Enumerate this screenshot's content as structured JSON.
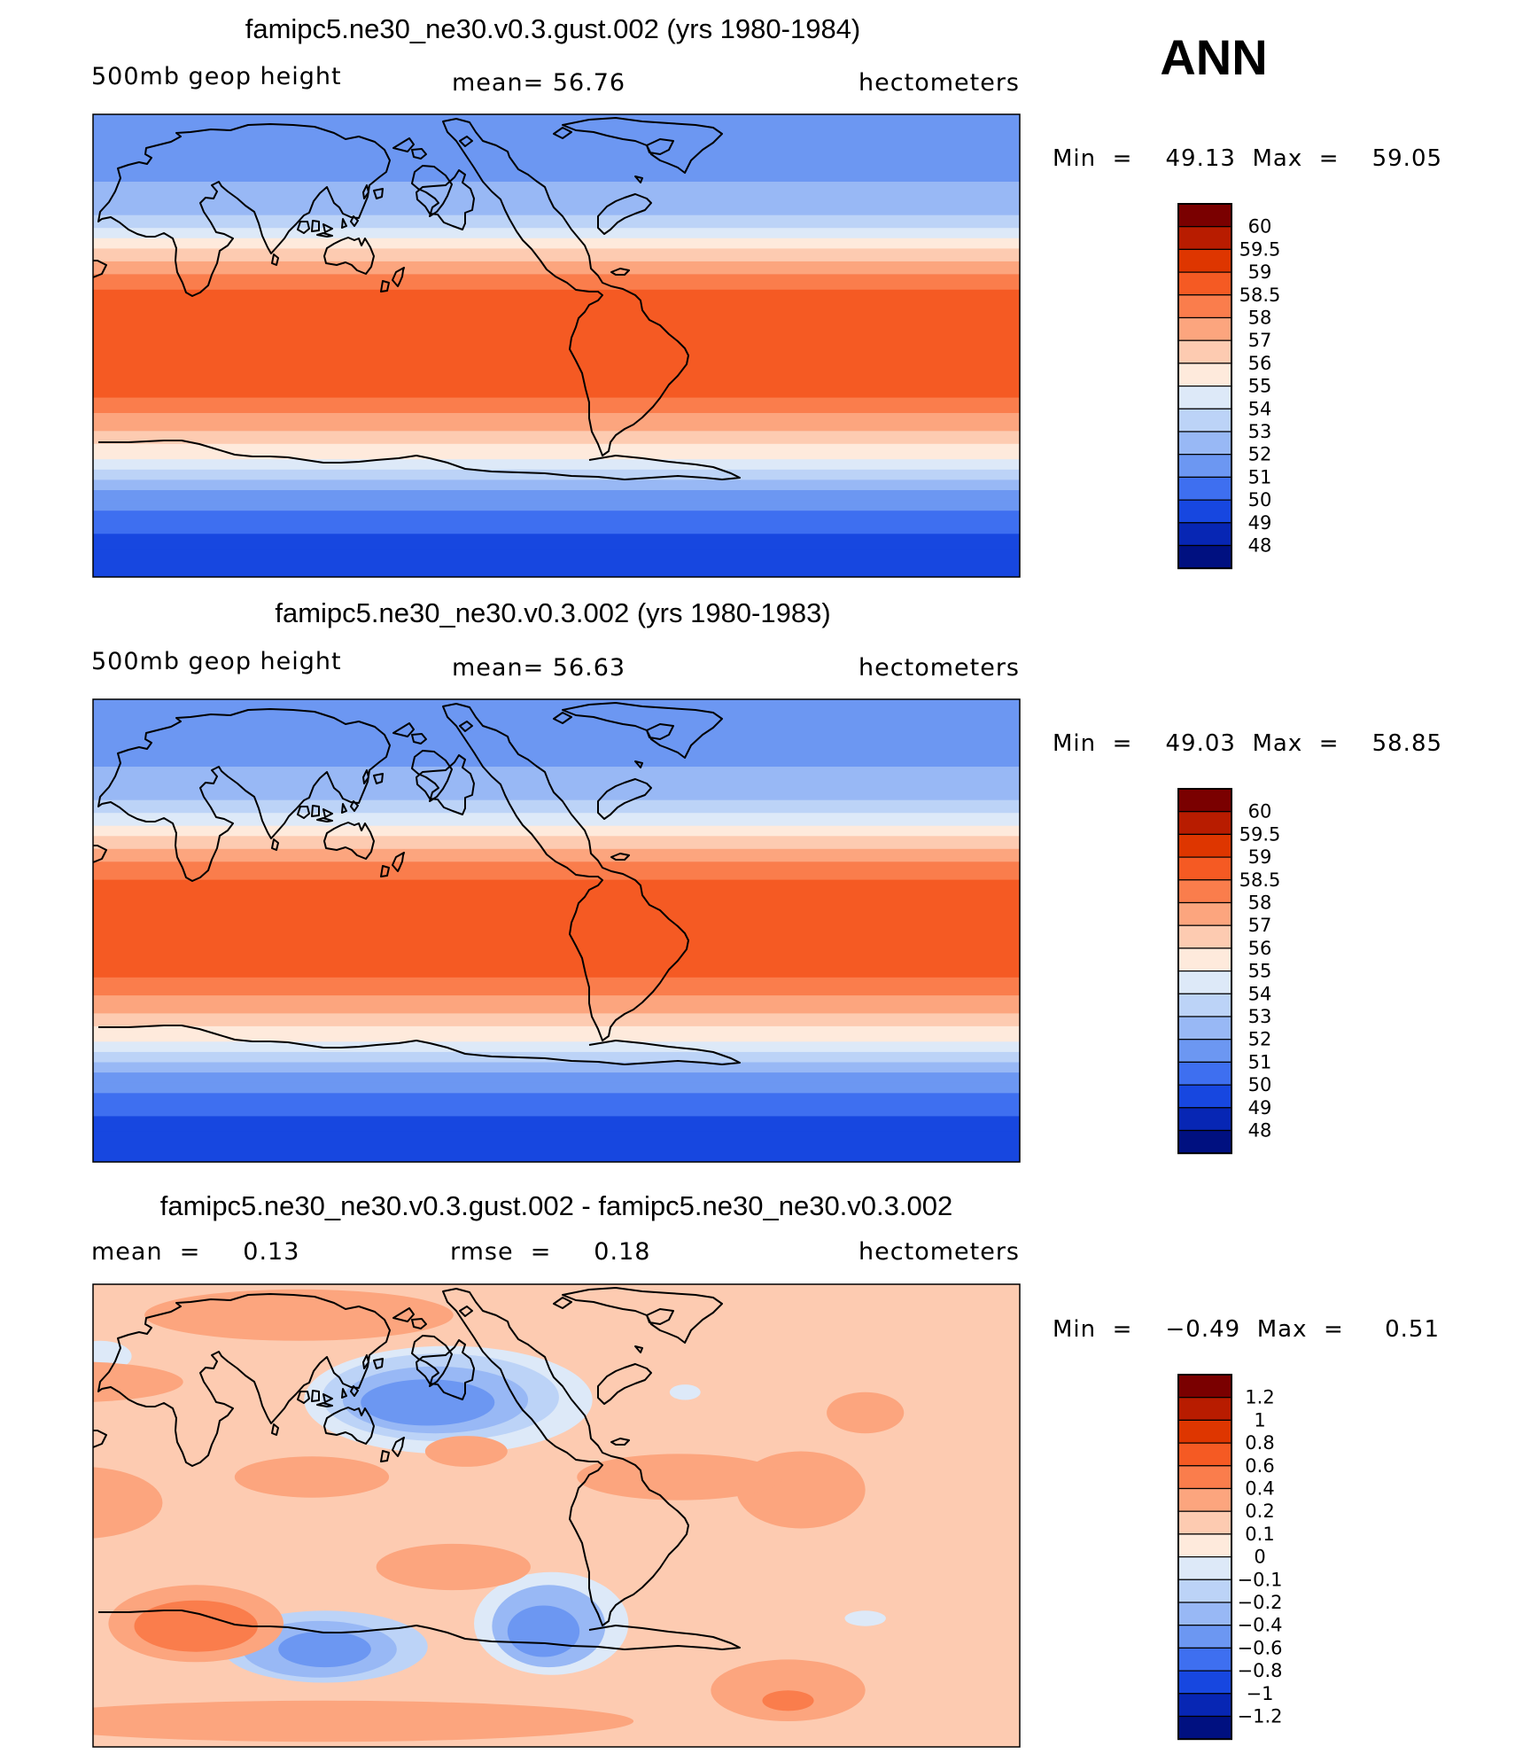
{
  "season": "ANN",
  "chart_data": [
    {
      "type": "heatmap",
      "title": "famipc5.ne30_ne30.v0.3.gust.002 (yrs 1980-1984)",
      "left_label": "500mb  geop  height",
      "center_label": "mean=   56.76",
      "right_label": "hectometers",
      "mean": 56.76,
      "min_label": "Min  =    49.13  Max  =    59.05",
      "min": 49.13,
      "max": 59.05,
      "levels": [
        "60",
        "59.5",
        "59",
        "58.5",
        "58",
        "57",
        "56",
        "55",
        "54",
        "53",
        "52",
        "51",
        "50",
        "49",
        "48"
      ],
      "colors": [
        "#7a0000",
        "#b81c00",
        "#de3600",
        "#f55a23",
        "#fa7d4c",
        "#fca57e",
        "#fdcbb1",
        "#feeadc",
        "#dde9f8",
        "#bcd3f7",
        "#98b8f5",
        "#6c97f2",
        "#3e6ff0",
        "#1747e0",
        "#0726b4",
        "#001080"
      ],
      "band_lats": [
        -90,
        -79,
        -73,
        -68,
        -64,
        -60,
        -56,
        -52,
        -48,
        -44,
        -38,
        -33,
        -26,
        -20,
        22,
        28,
        33,
        38,
        42,
        46,
        51,
        56,
        64,
        72,
        90
      ],
      "band_values": [
        49.2,
        49.7,
        50.3,
        50.8,
        51.3,
        51.8,
        52.4,
        53.3,
        54.4,
        55.4,
        56.4,
        57.3,
        58.2,
        58.7,
        58.2,
        57.3,
        56.6,
        55.6,
        54.6,
        53.6,
        52.9,
        52.3,
        51.6,
        51.1
      ]
    },
    {
      "type": "heatmap",
      "title": "famipc5.ne30_ne30.v0.3.002 (yrs 1980-1983)",
      "left_label": "500mb  geop  height",
      "center_label": "mean=   56.63",
      "right_label": "hectometers",
      "mean": 56.63,
      "min_label": "Min  =    49.03  Max  =    58.85",
      "min": 49.03,
      "max": 58.85,
      "levels": [
        "60",
        "59.5",
        "59",
        "58.5",
        "58",
        "57",
        "56",
        "55",
        "54",
        "53",
        "52",
        "51",
        "50",
        "49",
        "48"
      ],
      "colors": [
        "#7a0000",
        "#b81c00",
        "#de3600",
        "#f55a23",
        "#fa7d4c",
        "#fca57e",
        "#fdcbb1",
        "#feeadc",
        "#dde9f8",
        "#bcd3f7",
        "#98b8f5",
        "#6c97f2",
        "#3e6ff0",
        "#1747e0",
        "#0726b4",
        "#001080"
      ],
      "band_lats": [
        -90,
        -78,
        -72,
        -67,
        -63,
        -59,
        -55,
        -51,
        -47,
        -43,
        -37,
        -32,
        -25,
        -18,
        20,
        27,
        32,
        37,
        41,
        46,
        51,
        56,
        64,
        72,
        90
      ],
      "band_values": [
        49.2,
        49.7,
        50.3,
        50.8,
        51.3,
        51.8,
        52.4,
        53.3,
        54.4,
        55.4,
        56.4,
        57.3,
        58.2,
        58.6,
        58.2,
        57.3,
        56.6,
        55.6,
        54.6,
        53.6,
        52.9,
        52.3,
        51.6,
        51.1
      ]
    },
    {
      "type": "heatmap",
      "title": "famipc5.ne30_ne30.v0.3.gust.002 - famipc5.ne30_ne30.v0.3.002",
      "left_label": "mean  =     0.13",
      "center_label": "rmse  =     0.18",
      "right_label": "hectometers",
      "mean": 0.13,
      "rmse": 0.18,
      "min_label": "Min  =    −0.49  Max  =     0.51",
      "min": -0.49,
      "max": 0.51,
      "levels": [
        "1.2",
        "1",
        "0.8",
        "0.6",
        "0.4",
        "0.2",
        "0.1",
        "0",
        "−0.1",
        "−0.2",
        "−0.4",
        "−0.6",
        "−0.8",
        "−1",
        "−1.2"
      ],
      "colors": [
        "#7a0000",
        "#b81c00",
        "#de3600",
        "#f55a23",
        "#fa7d4c",
        "#fca57e",
        "#fdcbb1",
        "#feeadc",
        "#dde9f8",
        "#bcd3f7",
        "#98b8f5",
        "#6c97f2",
        "#3e6ff0",
        "#1747e0",
        "#0726b4",
        "#001080"
      ],
      "base_value": 0.15,
      "anomalies": [
        {
          "lon": 160,
          "lat": 44,
          "rlon": 26,
          "rlat": 9,
          "value": -0.5
        },
        {
          "lon": 163,
          "lat": 45,
          "rlon": 36,
          "rlat": 13,
          "value": -0.3
        },
        {
          "lon": 165,
          "lat": 46,
          "rlon": 46,
          "rlat": 17,
          "value": -0.15
        },
        {
          "lon": 168,
          "lat": 45,
          "rlon": 56,
          "rlat": 21,
          "value": -0.05
        },
        {
          "lon": 120,
          "lat": -52,
          "rlon": 18,
          "rlat": 7,
          "value": -0.5
        },
        {
          "lon": 118,
          "lat": -52,
          "rlon": 30,
          "rlat": 11,
          "value": -0.3
        },
        {
          "lon": 120,
          "lat": -51,
          "rlon": 40,
          "rlat": 14,
          "value": -0.12
        },
        {
          "lon": 205,
          "lat": -45,
          "rlon": 14,
          "rlat": 10,
          "value": -0.45
        },
        {
          "lon": 207,
          "lat": -43,
          "rlon": 22,
          "rlat": 16,
          "value": -0.25
        },
        {
          "lon": 208,
          "lat": -42,
          "rlon": 30,
          "rlat": 20,
          "value": -0.1
        },
        {
          "lon": 33,
          "lat": 62,
          "rlon": 12,
          "rlat": 6,
          "value": -0.08
        },
        {
          "lon": 330,
          "lat": -40,
          "rlon": 8,
          "rlat": 3,
          "value": -0.08
        },
        {
          "lon": 260,
          "lat": 48,
          "rlon": 6,
          "rlat": 3,
          "value": -0.1
        },
        {
          "lon": 70,
          "lat": -43,
          "rlon": 24,
          "rlat": 10,
          "value": 0.42
        },
        {
          "lon": 70,
          "lat": -42,
          "rlon": 34,
          "rlat": 15,
          "value": 0.3
        },
        {
          "lon": 300,
          "lat": -72,
          "rlon": 10,
          "rlat": 4,
          "value": 0.5
        },
        {
          "lon": 300,
          "lat": -68,
          "rlon": 30,
          "rlat": 12,
          "value": 0.3
        },
        {
          "lon": 25,
          "lat": 5,
          "rlon": 32,
          "rlat": 14,
          "value": 0.3
        },
        {
          "lon": 258,
          "lat": 15,
          "rlon": 40,
          "rlat": 9,
          "value": 0.3
        },
        {
          "lon": 20,
          "lat": 52,
          "rlon": 45,
          "rlat": 8,
          "value": 0.3
        },
        {
          "lon": 330,
          "lat": 40,
          "rlon": 15,
          "rlat": 8,
          "value": 0.3
        },
        {
          "lon": 115,
          "lat": 15,
          "rlon": 30,
          "rlat": 8,
          "value": 0.25
        },
        {
          "lon": 175,
          "lat": 25,
          "rlon": 16,
          "rlat": 6,
          "value": 0.25
        },
        {
          "lon": 170,
          "lat": -20,
          "rlon": 30,
          "rlat": 9,
          "value": 0.25
        },
        {
          "lon": 305,
          "lat": 10,
          "rlon": 25,
          "rlat": 15,
          "value": 0.25
        },
        {
          "lon": 110,
          "lat": 78,
          "rlon": 60,
          "rlat": 10,
          "value": 0.22
        },
        {
          "lon": 120,
          "lat": -80,
          "rlon": 120,
          "rlat": 8,
          "value": 0.2
        }
      ]
    }
  ]
}
